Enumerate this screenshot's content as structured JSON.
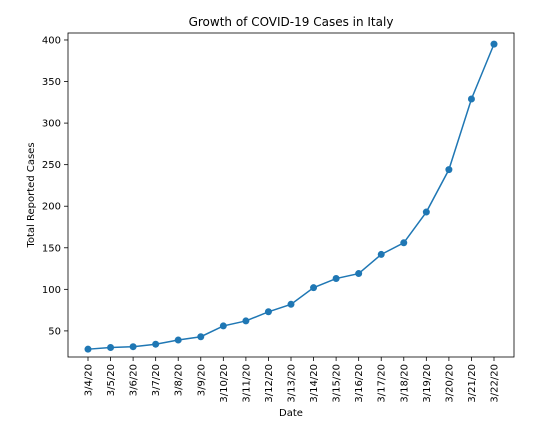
{
  "chart_data": {
    "type": "line",
    "title": "Growth of COVID-19 Cases in Italy",
    "xlabel": "Date",
    "ylabel": "Total Reported Cases",
    "categories": [
      "3/4/20",
      "3/5/20",
      "3/6/20",
      "3/7/20",
      "3/8/20",
      "3/9/20",
      "3/10/20",
      "3/11/20",
      "3/12/20",
      "3/13/20",
      "3/14/20",
      "3/15/20",
      "3/16/20",
      "3/17/20",
      "3/18/20",
      "3/19/20",
      "3/20/20",
      "3/21/20",
      "3/22/20"
    ],
    "series": [
      {
        "values": [
          28,
          30,
          31,
          34,
          39,
          43,
          56,
          62,
          73,
          82,
          102,
          113,
          119,
          142,
          156,
          193,
          244,
          329,
          395
        ],
        "color": "#1f77b4",
        "marker": "circle"
      }
    ],
    "ylim": [
      18.6,
      408.4
    ],
    "yticks": [
      50,
      100,
      150,
      200,
      250,
      300,
      350,
      400
    ],
    "grid": false,
    "legend": "none"
  }
}
